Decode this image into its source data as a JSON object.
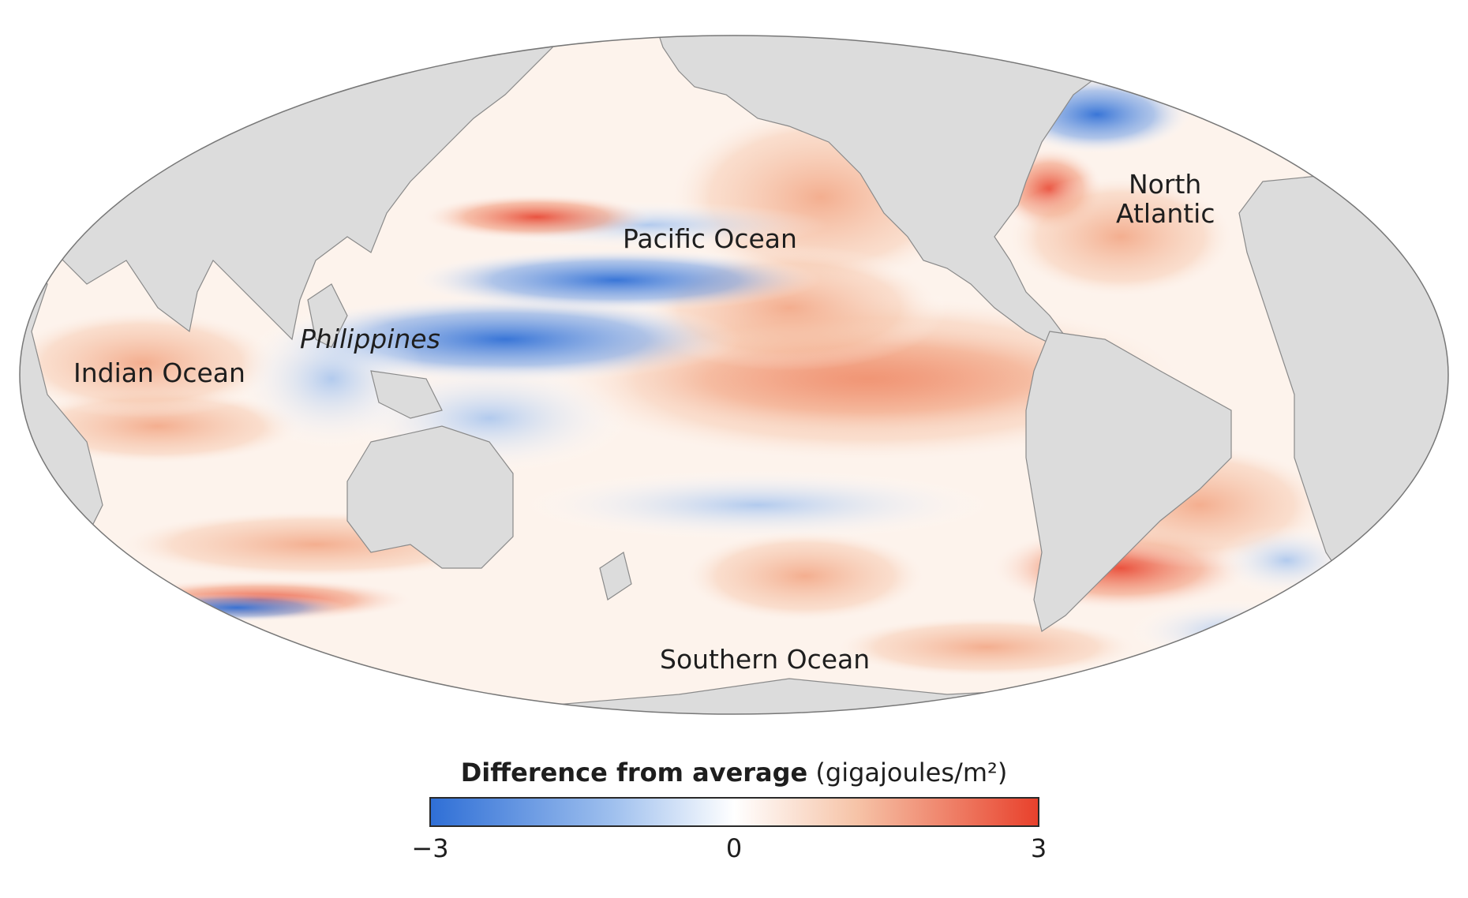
{
  "map": {
    "projection": "Mollweide",
    "land_color": "#dcdcdc",
    "ocean_labels": {
      "pacific": "Pacific Ocean",
      "philippines": "Philippines",
      "indian": "Indian Ocean",
      "north_atlantic_1": "North",
      "north_atlantic_2": "Atlantic",
      "southern": "Southern Ocean"
    }
  },
  "legend": {
    "title_bold": "Difference from average",
    "title_unit": "(gigajoules/m²)",
    "min_label": "−3",
    "mid_label": "0",
    "max_label": "3",
    "colors": {
      "negative": "#2f6fd6",
      "neutral": "#ffffff",
      "positive": "#e8412c"
    }
  }
}
